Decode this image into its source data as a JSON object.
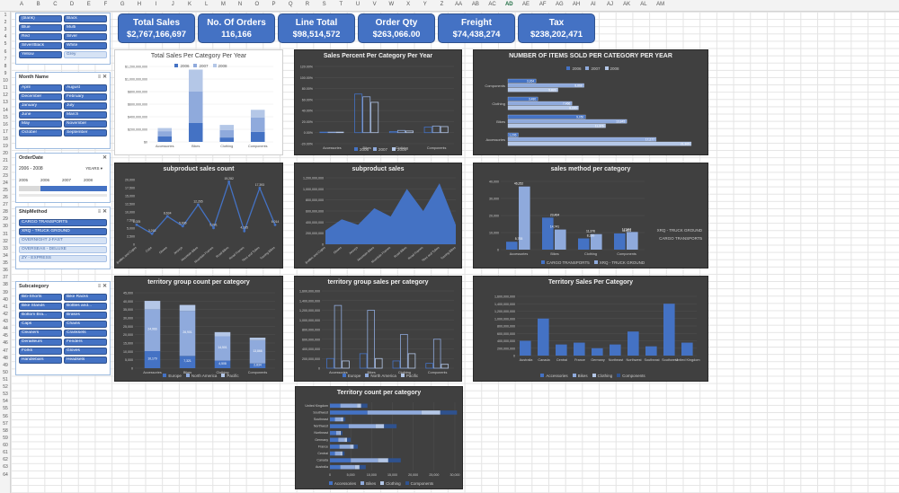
{
  "columns": [
    "A",
    "B",
    "C",
    "D",
    "E",
    "F",
    "G",
    "H",
    "I",
    "J",
    "K",
    "L",
    "M",
    "N",
    "O",
    "P",
    "Q",
    "R",
    "S",
    "T",
    "U",
    "V",
    "W",
    "X",
    "Y",
    "Z",
    "AA",
    "AB",
    "AC",
    "AD",
    "AE",
    "AF",
    "AG",
    "AH",
    "AI",
    "AJ",
    "AK",
    "AL",
    "AM"
  ],
  "selected_column": "AD",
  "rows": [
    "1",
    "2",
    "3",
    "4",
    "5",
    "6",
    "7",
    "8",
    "9",
    "10",
    "11",
    "12",
    "13",
    "14",
    "15",
    "16",
    "17",
    "18",
    "19",
    "20",
    "21",
    "22",
    "23",
    "24",
    "25",
    "26",
    "27",
    "28",
    "29",
    "30",
    "31",
    "32",
    "33",
    "34",
    "35",
    "36",
    "37",
    "38",
    "39",
    "40",
    "41",
    "42",
    "43",
    "44",
    "45",
    "46",
    "47",
    "48",
    "49",
    "50",
    "51",
    "52",
    "53",
    "54",
    "55",
    "56",
    "57",
    "58",
    "59",
    "60",
    "61",
    "62",
    "63",
    "64"
  ],
  "kpis": [
    {
      "title": "Total Sales",
      "value": "$2,767,166,697"
    },
    {
      "title": "No. Of Orders",
      "value": "116,166"
    },
    {
      "title": "Line Total",
      "value": "$98,514,572"
    },
    {
      "title": "Order Qty",
      "value": "$263,066.00"
    },
    {
      "title": "Freight",
      "value": "$74,438,274"
    },
    {
      "title": "Tax",
      "value": "$238,202,471"
    }
  ],
  "color_slicer": {
    "items": [
      "(blank)",
      "Black",
      "Blue",
      "Multi",
      "Red",
      "Silver",
      "Silver/Black",
      "White",
      "Yellow",
      "Grey"
    ]
  },
  "month_slicer": {
    "title": "Month Name",
    "items": [
      "April",
      "August",
      "December",
      "February",
      "January",
      "July",
      "June",
      "March",
      "May",
      "November",
      "October",
      "September"
    ]
  },
  "order_date": {
    "title": "OrderDate",
    "range": "2006 - 2008",
    "unit": "YEARS",
    "years": [
      "2005",
      "2006",
      "2007",
      "2008"
    ]
  },
  "ship_method": {
    "title": "ShipMethod",
    "items": [
      "CARGO TRANSPORT5",
      "XRQ - TRUCK GROUND",
      "OVERNIGHT J-FAST",
      "OVERSEAS - DELUXE",
      "ZY - EXPRESS"
    ]
  },
  "subcategory": {
    "title": "Subcategory",
    "items": [
      "Bib-Shorts",
      "Bike Racks",
      "Bike Stands",
      "Bottles and...",
      "Bottom Bra...",
      "Brakes",
      "Caps",
      "Chains",
      "Cleaners",
      "Cranksets",
      "Derailleurs",
      "Fenders",
      "Forks",
      "Gloves",
      "Handlebars",
      "Headsets"
    ]
  },
  "colors": {
    "blue": "#4472c4",
    "light_blue": "#8faadc",
    "pale": "#b4c7e7",
    "dark_bg": "#404040"
  },
  "chart_data": [
    {
      "type": "bar",
      "id": "total_sales_year",
      "title": "Total Sales Per Category Per Year",
      "categories": [
        "Accessories",
        "Bikes",
        "Clothing",
        "Components"
      ],
      "series": [
        {
          "name": "2006",
          "values": [
            90000000,
            300000000,
            70000000,
            160000000
          ]
        },
        {
          "name": "2007",
          "values": [
            80000000,
            500000000,
            120000000,
            230000000
          ]
        },
        {
          "name": "2008",
          "values": [
            50000000,
            350000000,
            80000000,
            120000000
          ]
        }
      ],
      "ylim": [
        0,
        1200000000
      ],
      "yticks": [
        "$0",
        "$200,000,000",
        "$400,000,000",
        "$600,000,000",
        "$800,000,000",
        "$1,000,000,000",
        "$1,200,000,000"
      ]
    },
    {
      "type": "bar",
      "id": "sales_percent",
      "title": "Sales Percent Per Category Per Year",
      "categories": [
        "Accessories",
        "Bikes",
        "Clothing",
        "Components"
      ],
      "series": [
        {
          "name": "2006",
          "values": [
            1,
            70,
            2,
            10
          ]
        },
        {
          "name": "2007",
          "values": [
            1,
            65,
            4,
            12
          ]
        },
        {
          "name": "2008",
          "values": [
            1,
            55,
            3,
            11
          ]
        }
      ],
      "ylim": [
        -20,
        120
      ],
      "yticks": [
        "-20.00%",
        "0.00%",
        "20.00%",
        "40.00%",
        "60.00%",
        "80.00%",
        "100.00%",
        "120.00%"
      ]
    },
    {
      "type": "bar",
      "id": "items_sold",
      "title": "NUMBER OF ITEMS SOLD PER CATEGORY PER YEAR",
      "categories": [
        "Accessories",
        "Bikes",
        "Clothing",
        "Components"
      ],
      "series": [
        {
          "name": "2006",
          "values": [
            1206,
            9050,
            3480,
            3264
          ]
        },
        {
          "name": "2007",
          "values": [
            17277,
            13845,
            7466,
            8868
          ]
        },
        {
          "name": "2008",
          "values": [
            21365,
            11376,
            8220,
            5821
          ]
        }
      ],
      "data_labels": [
        [
          "1,206",
          "9,050",
          "3,480",
          "3,264"
        ],
        [
          "17,277",
          "13,845",
          "7,466",
          "8,868"
        ],
        [
          "21,365",
          "11,376",
          "8,220",
          "5,821"
        ]
      ],
      "xlim": [
        0,
        22000
      ]
    },
    {
      "type": "line",
      "id": "subproduct_count",
      "title": "subproduct sales count",
      "categories": [
        "Bottles and Cages",
        "Caps",
        "Gloves",
        "Jerseys",
        "Mountain Bikes",
        "Mountain Frames",
        "Road Bikes",
        "Road Frames",
        "Tires and Tubes",
        "Touring Bikes"
      ],
      "values": [
        6025,
        3263,
        8634,
        5606,
        12265,
        5041,
        19282,
        4105,
        17393,
        6014
      ],
      "data_labels": [
        "6,025",
        "3,263",
        "8,634",
        "5,606",
        "12,265",
        "5,041",
        "19,282",
        "4,105",
        "17,393",
        "6,014"
      ],
      "ylim": [
        0,
        20000
      ],
      "yticks": [
        "0",
        "2,500",
        "5,000",
        "7,500",
        "10,000",
        "12,500",
        "15,000",
        "17,500",
        "20,000"
      ]
    },
    {
      "type": "area",
      "id": "subproduct_sales",
      "title": "subproduct sales",
      "categories": [
        "Bottles and Cages",
        "Gloves",
        "Jerseys",
        "Mountain Bikes",
        "Mountain Frames",
        "Road Bikes",
        "Road Frames",
        "Tires and Tubes",
        "Touring Bikes"
      ],
      "values": [
        250000000,
        450000000,
        350000000,
        650000000,
        500000000,
        1000000000,
        600000000,
        1100000000,
        350000000
      ],
      "ylim": [
        0,
        1200000000
      ],
      "yticks": [
        "0",
        "200,000,000",
        "400,000,000",
        "600,000,000",
        "800,000,000",
        "1,000,000,000",
        "1,200,000,000"
      ]
    },
    {
      "type": "bar",
      "id": "sales_method",
      "title": "sales method per category",
      "categories": [
        "Accessories",
        "Bikes",
        "Clothing",
        "Components"
      ],
      "series": [
        {
          "name": "CARGO TRANSPORT5",
          "values": [
            5793,
            23464,
            8220,
            11904
          ]
        },
        {
          "name": "XRQ - TRUCK GROUND",
          "values": [
            46252,
            14741,
            11376,
            12944
          ]
        }
      ],
      "data_labels": [
        [
          "5,793",
          "23,464",
          "8,220",
          "11,904"
        ],
        [
          "46,252",
          "14,741",
          "11,376",
          "12,944"
        ]
      ],
      "legend_side": [
        "XRQ - TRUCK GROUND",
        "CARGO TRANSPORT5"
      ],
      "ylim": [
        0,
        50000
      ],
      "yticks": [
        "0",
        "10,000",
        "20,000",
        "30,000",
        "40,000"
      ]
    },
    {
      "type": "bar",
      "id": "territory_group_count",
      "title": "territory group count per category",
      "categories": [
        "Accessories",
        "Bikes",
        "Clothing",
        "Components"
      ],
      "series": [
        {
          "name": "Europe",
          "values": [
            10179,
            7321,
            4508,
            2834
          ]
        },
        {
          "name": "North America",
          "values": [
            24966,
            26901,
            14501,
            13866
          ]
        },
        {
          "name": "Pacific",
          "values": [
            5000,
            3500,
            2500,
            1500
          ]
        }
      ],
      "data_labels": [
        [
          "10,179",
          "7,321",
          "4,508",
          "2,834"
        ],
        [
          "24,966",
          "26,901",
          "14,501",
          "13,866"
        ]
      ],
      "ylim": [
        0,
        45000
      ],
      "yticks": [
        "0",
        "5,000",
        "10,000",
        "15,000",
        "20,000",
        "25,000",
        "30,000",
        "35,000",
        "40,000",
        "45,000"
      ]
    },
    {
      "type": "bar",
      "id": "territory_group_sales",
      "title": "territory group sales per category",
      "categories": [
        "Accessories",
        "Bikes",
        "Clothing",
        "Components"
      ],
      "series": [
        {
          "name": "Europe",
          "values": [
            200000000,
            300000000,
            150000000,
            100000000
          ]
        },
        {
          "name": "North America",
          "values": [
            1300000000,
            1200000000,
            700000000,
            600000000
          ]
        },
        {
          "name": "Pacific",
          "values": [
            150000000,
            200000000,
            300000000,
            80000000
          ]
        }
      ],
      "ylim": [
        0,
        1600000000
      ],
      "yticks": [
        "0",
        "200,000,000",
        "400,000,000",
        "600,000,000",
        "800,000,000",
        "1,000,000,000",
        "1,200,000,000",
        "1,400,000,000",
        "1,600,000,000"
      ]
    },
    {
      "type": "bar",
      "id": "territory_sales",
      "title": "Territory Sales Per Category",
      "categories": [
        "Australia",
        "Canada",
        "Central",
        "France",
        "Germany",
        "Northeast",
        "Northwest",
        "Southeast",
        "Southwest",
        "United Kingdom"
      ],
      "series": [
        {
          "name": "Accessories",
          "values": [
            400000000,
            1000000000,
            300000000,
            350000000,
            200000000,
            300000000,
            650000000,
            250000000,
            1400000000,
            350000000
          ]
        }
      ],
      "legend": [
        "Accessories",
        "Bikes",
        "Clothing",
        "Components"
      ],
      "ylim": [
        0,
        1600000000
      ],
      "yticks": [
        "0",
        "200,000,000",
        "400,000,000",
        "600,000,000",
        "800,000,000",
        "1,000,000,000",
        "1,200,000,000",
        "1,400,000,000",
        "1,600,000,000"
      ]
    },
    {
      "type": "bar",
      "id": "territory_count",
      "title": "Territory count per category",
      "categories": [
        "United Kingdom",
        "Southwest",
        "Southeast",
        "Northwest",
        "Northeast",
        "Germany",
        "France",
        "Central",
        "Canada",
        "Australia"
      ],
      "series": [
        {
          "name": "Accessories",
          "values": [
            2500,
            9000,
            1200,
            4500,
            1500,
            2000,
            2300,
            1200,
            5000,
            2500
          ]
        },
        {
          "name": "Bikes",
          "values": [
            4000,
            13000,
            1500,
            6500,
            800,
            1500,
            2500,
            1300,
            6500,
            3500
          ]
        },
        {
          "name": "Clothing",
          "values": [
            1000,
            4500,
            500,
            2000,
            300,
            600,
            900,
            500,
            2500,
            1100
          ]
        },
        {
          "name": "Components",
          "values": [
            1500,
            4000,
            500,
            3000,
            400,
            900,
            1000,
            500,
            3000,
            1500
          ]
        }
      ],
      "xlim": [
        0,
        30000
      ],
      "xticks": [
        "0",
        "5,000",
        "10,000",
        "15,000",
        "20,000",
        "25,000",
        "30,000"
      ]
    }
  ]
}
